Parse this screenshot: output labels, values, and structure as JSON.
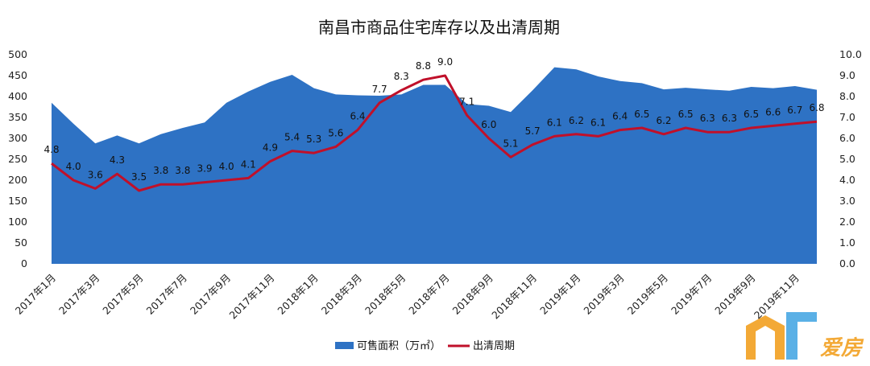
{
  "chart_data": {
    "type": "area",
    "title": "南昌市商品住宅库存以及出清周期",
    "x": [
      "2017年1月",
      "2017年2月",
      "2017年3月",
      "2017年4月",
      "2017年5月",
      "2017年6月",
      "2017年7月",
      "2017年8月",
      "2017年9月",
      "2017年10月",
      "2017年11月",
      "2017年12月",
      "2018年1月",
      "2018年2月",
      "2018年3月",
      "2018年4月",
      "2018年5月",
      "2018年6月",
      "2018年7月",
      "2018年8月",
      "2018年9月",
      "2018年10月",
      "2018年11月",
      "2018年12月",
      "2019年1月",
      "2019年2月",
      "2019年3月",
      "2019年4月",
      "2019年5月",
      "2019年6月",
      "2019年7月",
      "2019年8月",
      "2019年9月",
      "2019年10月",
      "2019年11月",
      "2019年12月"
    ],
    "x_tick_labels": [
      "2017年1月",
      "2017年3月",
      "2017年5月",
      "2017年7月",
      "2017年9月",
      "2017年11月",
      "2018年1月",
      "2018年3月",
      "2018年5月",
      "2018年7月",
      "2018年9月",
      "2018年11月",
      "2019年1月",
      "2019年3月",
      "2019年5月",
      "2019年7月",
      "2019年9月",
      "2019年11月"
    ],
    "y_left": {
      "ylim": [
        0,
        500
      ],
      "ticks": [
        "0",
        "50",
        "100",
        "150",
        "200",
        "250",
        "300",
        "350",
        "400",
        "450",
        "500"
      ]
    },
    "y_right": {
      "ylim": [
        0,
        10
      ],
      "ticks": [
        "0.0",
        "1.0",
        "2.0",
        "3.0",
        "4.0",
        "5.0",
        "6.0",
        "7.0",
        "8.0",
        "9.0",
        "10.0"
      ]
    },
    "series": [
      {
        "name": "可售面积（万㎡）",
        "type": "area",
        "axis": "left",
        "color": "#2e72c4",
        "values": [
          385,
          335,
          288,
          307,
          288,
          310,
          325,
          338,
          385,
          412,
          435,
          452,
          420,
          405,
          403,
          402,
          405,
          428,
          428,
          382,
          378,
          363,
          415,
          470,
          465,
          448,
          437,
          432,
          417,
          421,
          417,
          414,
          423,
          420,
          425,
          416
        ]
      },
      {
        "name": "出清周期",
        "type": "line",
        "axis": "right",
        "color": "#c0102a",
        "values": [
          4.8,
          4.0,
          3.6,
          4.3,
          3.5,
          3.8,
          3.8,
          3.9,
          4.0,
          4.1,
          4.9,
          5.4,
          5.3,
          5.6,
          6.4,
          7.7,
          8.3,
          8.8,
          9.0,
          7.1,
          6.0,
          5.1,
          5.7,
          6.1,
          6.2,
          6.1,
          6.4,
          6.5,
          6.2,
          6.5,
          6.3,
          6.3,
          6.5,
          6.6,
          6.7,
          6.8
        ],
        "labels": [
          "4.8",
          "4.0",
          "3.6",
          "4.3",
          "3.5",
          "3.8",
          "3.8",
          "3.9",
          "4.0",
          "4.1",
          "4.9",
          "5.4",
          "5.3",
          "5.6",
          "6.4",
          "7.7",
          "8.3",
          "8.8",
          "9.0",
          "7.1",
          "6.0",
          "5.1",
          "5.7",
          "6.1",
          "6.2",
          "6.1",
          "6.4",
          "6.5",
          "6.2",
          "6.5",
          "6.3",
          "6.3",
          "6.5",
          "6.6",
          "6.7",
          "6.8"
        ]
      }
    ],
    "grid": false,
    "legend_position": "bottom"
  },
  "watermark": {
    "text": "爱房",
    "colors": {
      "orange": "#f3a936",
      "blue": "#5ab0e6"
    }
  }
}
